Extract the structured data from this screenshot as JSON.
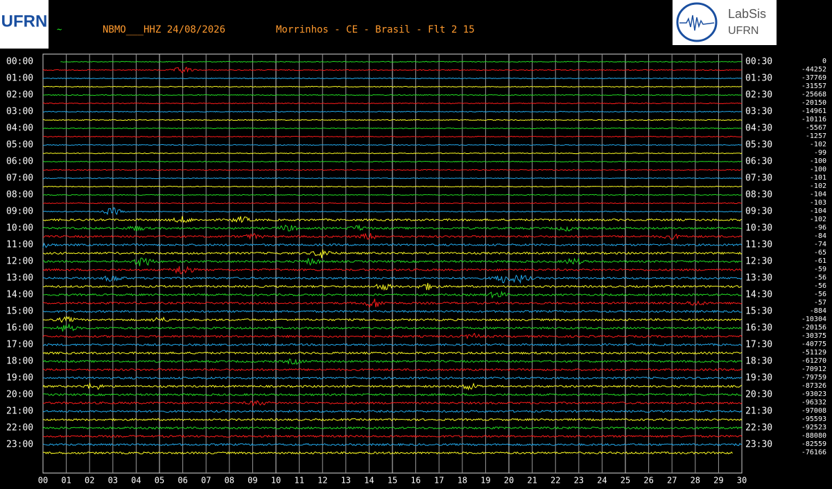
{
  "header": {
    "marker": "~",
    "station": "NBMO___HHZ 24/08/2026",
    "location": "Morrinhos - CE - Brasil - Flt 2 15",
    "left_logo": "UFRN",
    "right_logo_title": "LabSis",
    "right_logo_subtitle": "UFRN"
  },
  "left_labels": [
    "00:00",
    "01:00",
    "02:00",
    "03:00",
    "04:00",
    "05:00",
    "06:00",
    "07:00",
    "08:00",
    "09:00",
    "10:00",
    "11:00",
    "12:00",
    "13:00",
    "14:00",
    "15:00",
    "16:00",
    "17:00",
    "18:00",
    "19:00",
    "20:00",
    "21:00",
    "22:00",
    "23:00"
  ],
  "right_labels": [
    "00:30",
    "01:30",
    "02:30",
    "03:30",
    "04:30",
    "05:30",
    "06:30",
    "07:30",
    "08:30",
    "09:30",
    "10:30",
    "11:30",
    "12:30",
    "13:30",
    "14:30",
    "15:30",
    "16:30",
    "17:30",
    "18:30",
    "19:30",
    "20:30",
    "21:30",
    "22:30",
    "23:30"
  ],
  "offsets": [
    0,
    -44252,
    -37769,
    -31557,
    -25668,
    -20150,
    -14961,
    -10116,
    -5567,
    -1257,
    -102,
    -99,
    -100,
    -100,
    -101,
    -102,
    -104,
    -103,
    -104,
    -102,
    -96,
    -84,
    -74,
    -65,
    -61,
    -59,
    -56,
    -56,
    -56,
    -57,
    -884,
    -10304,
    -20156,
    -30375,
    -40775,
    -51129,
    -61270,
    -70912,
    -79759,
    -87326,
    -93023,
    -96332,
    -97008,
    -95593,
    -92523,
    -88080,
    -82559,
    -76166
  ],
  "minute_labels": [
    "00",
    "01",
    "02",
    "03",
    "04",
    "05",
    "06",
    "07",
    "08",
    "09",
    "10",
    "11",
    "12",
    "13",
    "14",
    "15",
    "16",
    "17",
    "18",
    "19",
    "20",
    "21",
    "22",
    "23",
    "24",
    "25",
    "26",
    "27",
    "28",
    "29",
    "30"
  ]
}
